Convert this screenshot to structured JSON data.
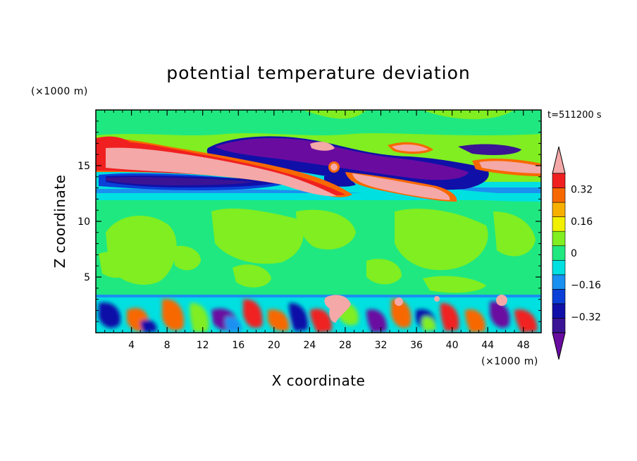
{
  "chart_data": {
    "type": "heatmap",
    "title": "potential temperature deviation",
    "xlabel": "X coordinate",
    "ylabel": "Z coordinate",
    "x_unit": "(×1000 m)",
    "y_unit": "(×1000 m)",
    "time_label": "t=511200 s",
    "xlim": [
      0,
      50
    ],
    "ylim": [
      0,
      20
    ],
    "x_ticks": [
      4,
      8,
      12,
      16,
      20,
      24,
      28,
      32,
      36,
      40,
      44,
      48
    ],
    "y_ticks": [
      5,
      10,
      15
    ],
    "colorbar": {
      "levels": [
        -0.48,
        -0.4,
        -0.32,
        -0.24,
        -0.16,
        -0.08,
        0,
        0.08,
        0.16,
        0.24,
        0.32,
        0.4,
        0.48
      ],
      "colors": [
        "#6a0ba0",
        "#3a1495",
        "#1010a8",
        "#0a40d8",
        "#1a90f0",
        "#00e0e0",
        "#20e880",
        "#80ee20",
        "#f0f000",
        "#f8b000",
        "#f86800",
        "#f02020",
        "#f4a8a8"
      ],
      "tick_values": [
        -0.32,
        -0.16,
        0,
        0.16,
        0.32
      ],
      "tick_labels": [
        "−0.32",
        "−0.16",
        "0",
        "0.16",
        "0.32"
      ],
      "extend": "both"
    },
    "features": [
      {
        "x": [
          0,
          50
        ],
        "z": [
          3.6,
          12
        ],
        "level": 0.04
      },
      {
        "x": [
          0,
          50
        ],
        "z": [
          12,
          12.8
        ],
        "level": -0.04
      },
      {
        "x": [
          0,
          50
        ],
        "z": [
          12.8,
          20
        ],
        "level": 0.04
      },
      {
        "x": [
          0,
          3.4
        ],
        "z": [
          0,
          3.6
        ],
        "level": -0.12
      },
      {
        "x": [
          0,
          50
        ],
        "z": [
          3.4,
          3.7
        ],
        "level": -0.12
      }
    ]
  }
}
